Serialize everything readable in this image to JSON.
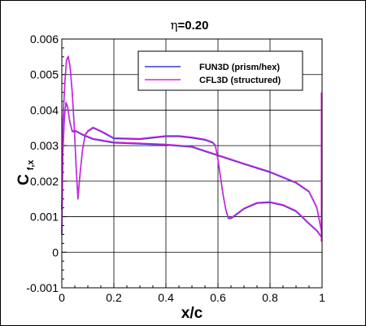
{
  "chart_data": {
    "type": "line",
    "title_greek": "η",
    "title_rest": "=0.20",
    "xlabel": "x/c",
    "ylabel_main": "C",
    "ylabel_sub": "f,x",
    "xlim": [
      0,
      1
    ],
    "ylim": [
      -0.001,
      0.006
    ],
    "xticks": [
      "0",
      "0.2",
      "0.4",
      "0.6",
      "0.8",
      "1"
    ],
    "xtick_values": [
      0,
      0.2,
      0.4,
      0.6,
      0.8,
      1
    ],
    "yticks": [
      "-0.001",
      "0",
      "0.001",
      "0.002",
      "0.003",
      "0.004",
      "0.005",
      "0.006"
    ],
    "ytick_values": [
      -0.001,
      0,
      0.001,
      0.002,
      0.003,
      0.004,
      0.005,
      0.006
    ],
    "grid": true,
    "legend_position": "top-right",
    "series": [
      {
        "name": "FUN3D (prism/hex)",
        "color": "#3a3ad6",
        "surface": "upper",
        "x": [
          0,
          0.005,
          0.012,
          0.018,
          0.025,
          0.032,
          0.04,
          0.048,
          0.055,
          0.062,
          0.07,
          0.08,
          0.09,
          0.1,
          0.12,
          0.15,
          0.2,
          0.3,
          0.4,
          0.45,
          0.5,
          0.55,
          0.58,
          0.59,
          0.6,
          0.61,
          0.62,
          0.63,
          0.64,
          0.65,
          0.66,
          0.7,
          0.75,
          0.8,
          0.85,
          0.9,
          0.95,
          0.98,
          1.0
        ],
        "y": [
          0.0012,
          0.0038,
          0.0048,
          0.0054,
          0.0055,
          0.0052,
          0.0045,
          0.0035,
          0.0024,
          0.0015,
          0.0022,
          0.0029,
          0.0033,
          0.0034,
          0.0035,
          0.0034,
          0.0032,
          0.00318,
          0.00326,
          0.00326,
          0.00322,
          0.00316,
          0.00308,
          0.003,
          0.0026,
          0.0021,
          0.0016,
          0.0012,
          0.00095,
          0.00095,
          0.001,
          0.00122,
          0.00138,
          0.0014,
          0.00132,
          0.00115,
          0.0008,
          0.0006,
          0.0004
        ]
      },
      {
        "name": "CFL3D (structured)",
        "color": "#e020e0",
        "surface": "lower",
        "x": [
          0,
          0.004,
          0.01,
          0.016,
          0.022,
          0.03,
          0.04,
          0.055,
          0.08,
          0.12,
          0.2,
          0.3,
          0.4,
          0.5,
          0.6,
          0.7,
          0.8,
          0.9,
          0.95,
          0.98,
          1.0
        ],
        "y": [
          0.0005,
          0.0028,
          0.0038,
          0.0042,
          0.0041,
          0.0037,
          0.0034,
          0.0034,
          0.0033,
          0.00318,
          0.00308,
          0.00305,
          0.00302,
          0.00296,
          0.00272,
          0.00248,
          0.00225,
          0.00195,
          0.0017,
          0.00125,
          0.0005
        ]
      }
    ],
    "te_spike": {
      "x": 1.0,
      "y_from": 0.0003,
      "y_to": 0.0045
    }
  }
}
